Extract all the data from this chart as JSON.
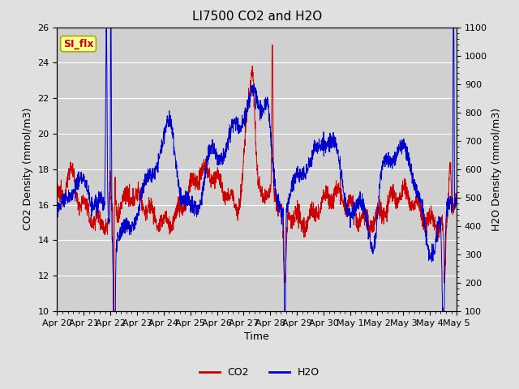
{
  "title": "LI7500 CO2 and H2O",
  "xlabel": "Time",
  "ylabel_left": "CO2 Density (mmol/m3)",
  "ylabel_right": "H2O Density (mmol/m3)",
  "ylim_left": [
    10,
    26
  ],
  "ylim_right": [
    100,
    1100
  ],
  "yticks_left": [
    10,
    12,
    14,
    16,
    18,
    20,
    22,
    24,
    26
  ],
  "yticks_right": [
    100,
    200,
    300,
    400,
    500,
    600,
    700,
    800,
    900,
    1000,
    1100
  ],
  "xtick_labels": [
    "Apr 20",
    "Apr 21",
    "Apr 22",
    "Apr 23",
    "Apr 24",
    "Apr 25",
    "Apr 26",
    "Apr 27",
    "Apr 28",
    "Apr 29",
    "Apr 30",
    "May 1",
    "May 2",
    "May 3",
    "May 4",
    "May 5"
  ],
  "co2_color": "#cc0000",
  "h2o_color": "#0000cc",
  "background_color": "#e0e0e0",
  "plot_bg_color": "#d0d0d0",
  "grid_color": "#ffffff",
  "annotation_text": "SI_flx",
  "annotation_color": "#cc0000",
  "annotation_bg": "#ffff99",
  "annotation_border": "#aaaa00",
  "legend_co2": "CO2",
  "legend_h2o": "H2O",
  "title_fontsize": 11,
  "axis_label_fontsize": 9,
  "tick_fontsize": 8,
  "legend_fontsize": 9,
  "linewidth": 0.7
}
